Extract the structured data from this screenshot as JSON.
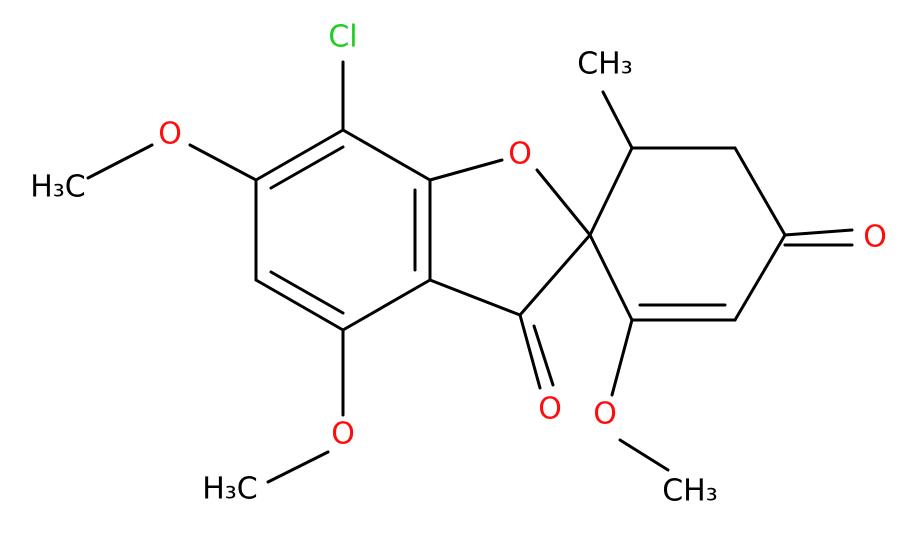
{
  "atoms": [
    {
      "label": "Cl"
    },
    {
      "label": "O"
    },
    {
      "label": "H₃C"
    },
    {
      "label": "O"
    },
    {
      "label": "H₃C"
    },
    {
      "label": "O"
    },
    {
      "label": "O"
    },
    {
      "label": "CH₃"
    },
    {
      "label": "O"
    },
    {
      "label": "O"
    },
    {
      "label": "CH₃"
    }
  ]
}
